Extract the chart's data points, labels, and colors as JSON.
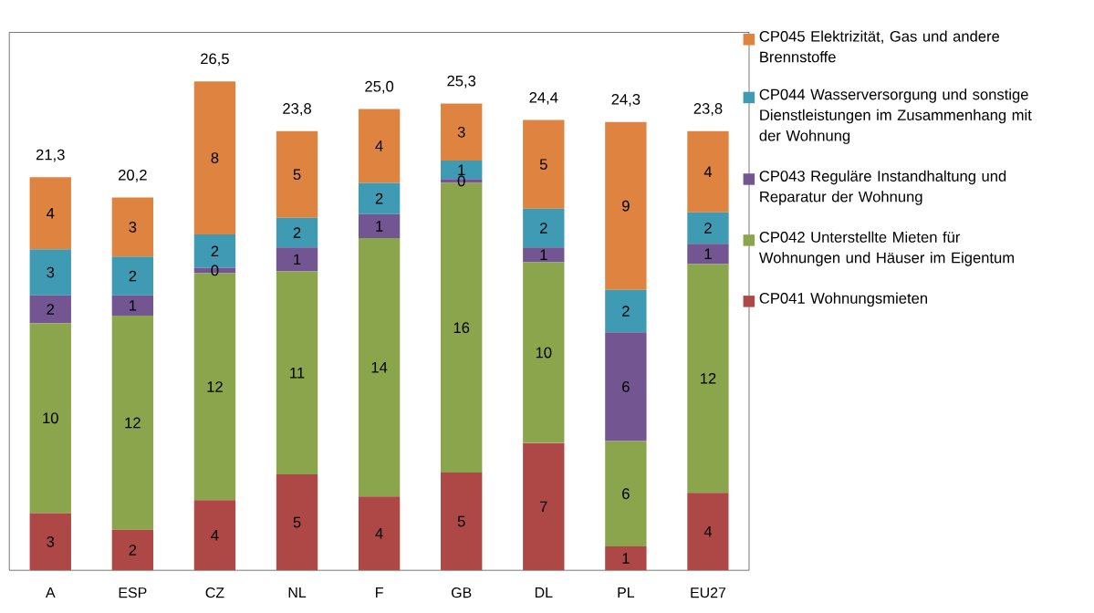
{
  "chart_data": {
    "type": "bar",
    "stacked": true,
    "legend": "right",
    "categories": [
      "A",
      "ESP",
      "CZ",
      "NL",
      "F",
      "GB",
      "DL",
      "PL",
      "EU27"
    ],
    "series": [
      {
        "name": "CP041  Wohnungsmieten",
        "color": "#ad4846",
        "values": [
          3.1,
          2.2,
          3.8,
          5.2,
          4.0,
          5.3,
          6.9,
          1.3,
          4.2
        ],
        "value_labels": [
          "3",
          "2",
          "4",
          "5",
          "4",
          "5",
          "7",
          "1",
          "4"
        ]
      },
      {
        "name": "CP042  Unterstellte Mieten für Wohnungen und Häuser im Eigentum",
        "color": "#8ba54c",
        "values": [
          10.3,
          11.6,
          12.3,
          11.0,
          14.0,
          15.7,
          9.8,
          5.7,
          12.4
        ],
        "value_labels": [
          "10",
          "12",
          "12",
          "11",
          "14",
          "16",
          "10",
          "6",
          "12"
        ]
      },
      {
        "name": "CP043  Reguläre Instandhaltung und Reparatur der Wohnung",
        "color": "#735592",
        "values": [
          1.5,
          1.1,
          0.3,
          1.3,
          1.3,
          0.2,
          0.8,
          5.9,
          1.1
        ],
        "value_labels": [
          "2",
          "1",
          "0",
          "1",
          "1",
          "0",
          "1",
          "6",
          "1"
        ]
      },
      {
        "name": "CP044  Wasserversorgung und sonstige Dienstleistungen im Zusammenhang mit der Wohnung",
        "color": "#3f9bb3",
        "values": [
          2.5,
          2.1,
          1.8,
          1.6,
          1.7,
          1.0,
          2.1,
          2.3,
          1.7
        ],
        "value_labels": [
          "3",
          "2",
          "2",
          "2",
          "2",
          "1",
          "2",
          "2",
          "2"
        ]
      },
      {
        "name": "CP045  Elektrizität, Gas und andere Brennstoffe",
        "color": "#df8340",
        "values": [
          3.9,
          3.2,
          8.3,
          4.7,
          4.0,
          3.1,
          4.8,
          9.1,
          4.4
        ],
        "value_labels": [
          "4",
          "3",
          "8",
          "5",
          "4",
          "3",
          "5",
          "9",
          "4"
        ]
      }
    ],
    "totals": [
      "21,3",
      "20,2",
      "26,5",
      "23,8",
      "25,0",
      "25,3",
      "24,4",
      "24,3",
      "23,8"
    ]
  }
}
